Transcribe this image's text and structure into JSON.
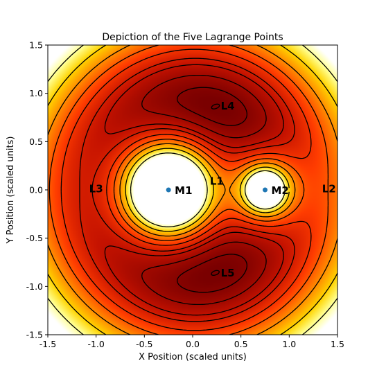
{
  "chart_data": {
    "type": "contour",
    "title": "Depiction of the Five Lagrange Points",
    "xlabel": "X Position (scaled units)",
    "ylabel": "Y Position (scaled units)",
    "xlim": [
      -1.5,
      1.5
    ],
    "ylim": [
      -1.5,
      1.5
    ],
    "xticks": [
      "-1.5",
      "-1.0",
      "-0.5",
      "0.0",
      "0.5",
      "1.0",
      "1.5"
    ],
    "yticks": [
      "1.5",
      "1.0",
      "0.5",
      "0.0",
      "-0.5",
      "-1.0",
      "-1.5"
    ],
    "colormap": [
      "#7a0000",
      "#c41200",
      "#ff3c00",
      "#ff8a00",
      "#ffd400",
      "#ffff90",
      "#ffffff"
    ],
    "contour_color": "#000000",
    "bodies": [
      {
        "label": "M1",
        "x": -0.25,
        "y": 0.0
      },
      {
        "label": "M2",
        "x": 0.75,
        "y": 0.0
      }
    ],
    "body_color": "#1f77b4",
    "lagrange_points": [
      {
        "label": "L1",
        "x": 0.25,
        "y": 0.09
      },
      {
        "label": "L2",
        "x": 1.34,
        "y": 0.01
      },
      {
        "label": "L3",
        "x": -1.0,
        "y": 0.01
      },
      {
        "label": "L4",
        "x": 0.27,
        "y": 0.87
      },
      {
        "label": "L5",
        "x": 0.27,
        "y": -0.86
      }
    ]
  }
}
